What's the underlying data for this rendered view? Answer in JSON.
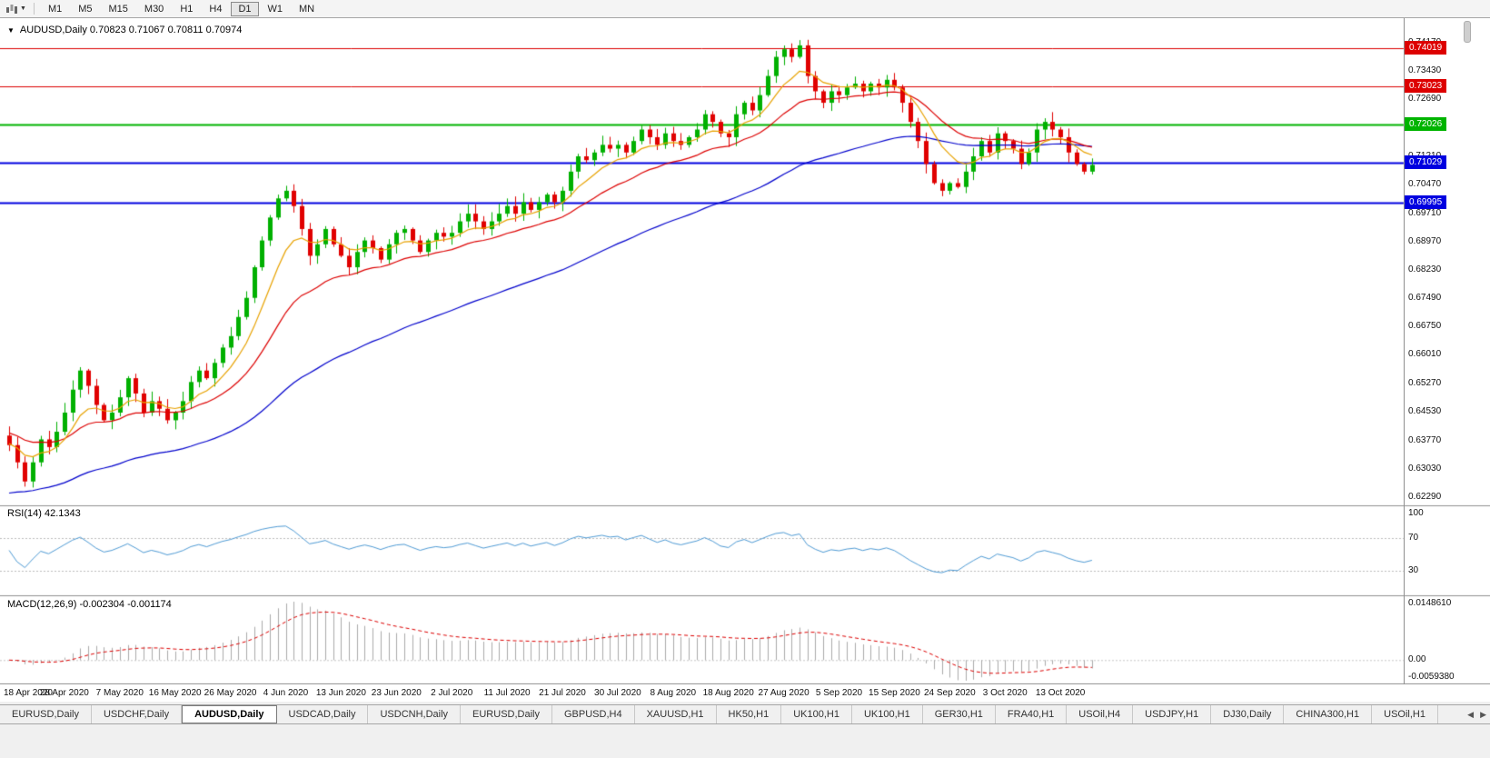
{
  "toolbar": {
    "timeframes": [
      "M1",
      "M5",
      "M15",
      "M30",
      "H1",
      "H4",
      "D1",
      "W1",
      "MN"
    ],
    "active_timeframe": "D1"
  },
  "icons": {
    "chart_menu": "▼",
    "dropdown_caret": "▼",
    "tab_scroll_left": "◀",
    "tab_scroll_right": "▶"
  },
  "chart": {
    "title_line": "AUDUSD,Daily  0.70823 0.71067 0.70811 0.70974",
    "symbol": "AUDUSD",
    "period": "Daily",
    "ohlc": {
      "open": "0.70823",
      "high": "0.71067",
      "low": "0.70811",
      "close": "0.70974"
    }
  },
  "panels": {
    "rsi": {
      "label": "RSI(14) 42.1343",
      "axis": [
        "100",
        "70",
        "30"
      ]
    },
    "macd": {
      "label": "MACD(12,26,9) -0.002304 -0.001174",
      "axis_top": "0.0148610",
      "axis_zero": "0.00",
      "axis_bottom": "-0.0059380"
    }
  },
  "y_axis": {
    "labels": [
      "0.74170",
      "0.73430",
      "0.72690",
      "0.71950",
      "0.71210",
      "0.70470",
      "0.69710",
      "0.68970",
      "0.68230",
      "0.67490",
      "0.66750",
      "0.66010",
      "0.65270",
      "0.64530",
      "0.63770",
      "0.63030",
      "0.62290"
    ]
  },
  "levels": [
    {
      "price": 0.74019,
      "label": "0.74019",
      "color": "#dd0000",
      "width": 1
    },
    {
      "price": 0.73023,
      "label": "0.73023",
      "color": "#dd0000",
      "width": 1
    },
    {
      "price": 0.72026,
      "label": "0.72026",
      "color": "#00b400",
      "width": 2
    },
    {
      "price": 0.71029,
      "label": "0.71029",
      "color": "#0000e0",
      "width": 2
    },
    {
      "price": 0.69995,
      "label": "0.69995",
      "color": "#0000e0",
      "width": 2
    }
  ],
  "x_axis": {
    "bars_per_label": 7,
    "dates": [
      "18 Apr 2020",
      "28 Apr 2020",
      "7 May 2020",
      "16 May 2020",
      "26 May 2020",
      "4 Jun 2020",
      "13 Jun 2020",
      "23 Jun 2020",
      "2 Jul 2020",
      "11 Jul 2020",
      "21 Jul 2020",
      "30 Jul 2020",
      "8 Aug 2020",
      "18 Aug 2020",
      "27 Aug 2020",
      "5 Sep 2020",
      "15 Sep 2020",
      "24 Sep 2020",
      "3 Oct 2020",
      "13 Oct 2020"
    ]
  },
  "chart_data": {
    "type": "candlestick",
    "symbol": "AUDUSD",
    "timeframe": "Daily",
    "price_range_top": 0.7417,
    "price_range_bottom": 0.6229,
    "open_first": 0.639,
    "up_color": "#00b000",
    "down_color": "#e00000",
    "closes": [
      0.6365,
      0.632,
      0.627,
      0.632,
      0.638,
      0.636,
      0.64,
      0.645,
      0.651,
      0.656,
      0.652,
      0.647,
      0.643,
      0.645,
      0.649,
      0.654,
      0.65,
      0.645,
      0.648,
      0.646,
      0.643,
      0.645,
      0.648,
      0.653,
      0.656,
      0.654,
      0.658,
      0.662,
      0.665,
      0.67,
      0.675,
      0.683,
      0.69,
      0.696,
      0.701,
      0.703,
      0.699,
      0.693,
      0.686,
      0.689,
      0.693,
      0.689,
      0.686,
      0.683,
      0.687,
      0.69,
      0.688,
      0.685,
      0.689,
      0.692,
      0.693,
      0.69,
      0.687,
      0.69,
      0.692,
      0.691,
      0.692,
      0.695,
      0.697,
      0.695,
      0.693,
      0.695,
      0.697,
      0.699,
      0.697,
      0.7,
      0.698,
      0.7,
      0.702,
      0.7,
      0.703,
      0.708,
      0.712,
      0.711,
      0.713,
      0.715,
      0.714,
      0.715,
      0.713,
      0.716,
      0.719,
      0.717,
      0.715,
      0.718,
      0.716,
      0.715,
      0.717,
      0.719,
      0.723,
      0.721,
      0.718,
      0.717,
      0.723,
      0.726,
      0.724,
      0.728,
      0.733,
      0.738,
      0.74,
      0.738,
      0.741,
      0.733,
      0.729,
      0.726,
      0.729,
      0.728,
      0.73,
      0.731,
      0.729,
      0.731,
      0.73,
      0.732,
      0.73,
      0.726,
      0.721,
      0.716,
      0.71,
      0.705,
      0.703,
      0.705,
      0.704,
      0.708,
      0.712,
      0.716,
      0.713,
      0.718,
      0.716,
      0.714,
      0.71,
      0.713,
      0.719,
      0.721,
      0.719,
      0.717,
      0.713,
      0.71,
      0.708,
      0.70974
    ],
    "indicators": {
      "ma_fast": {
        "type": "ema",
        "period": 8,
        "color": "#e8a200",
        "seed": 0.637
      },
      "ma_mid": {
        "type": "ema",
        "period": 20,
        "color": "#dd0000",
        "seed": 0.64
      },
      "ma_slow": {
        "type": "ema",
        "period": 55,
        "color": "#0000cc",
        "seed": 0.6235
      },
      "rsi": {
        "period": 14,
        "current_value": "42.1343",
        "color": "#4f9bd5",
        "levels": [
          70,
          30
        ]
      },
      "macd": {
        "fast": 12,
        "slow": 26,
        "signal": 9,
        "current_values": "-0.002304 -0.001174",
        "hist_color": "#aaaaaa",
        "signal_color": "#dd0000"
      }
    }
  },
  "tabs": {
    "active_index": 2,
    "items": [
      "EURUSD,Daily",
      "USDCHF,Daily",
      "AUDUSD,Daily",
      "USDCAD,Daily",
      "USDCNH,Daily",
      "EURUSD,Daily",
      "GBPUSD,H4",
      "XAUUSD,H1",
      "HK50,H1",
      "UK100,H1",
      "UK100,H1",
      "GER30,H1",
      "FRA40,H1",
      "USOil,H4",
      "USDJPY,H1",
      "DJ30,Daily",
      "CHINA300,H1",
      "USOil,H1"
    ]
  }
}
